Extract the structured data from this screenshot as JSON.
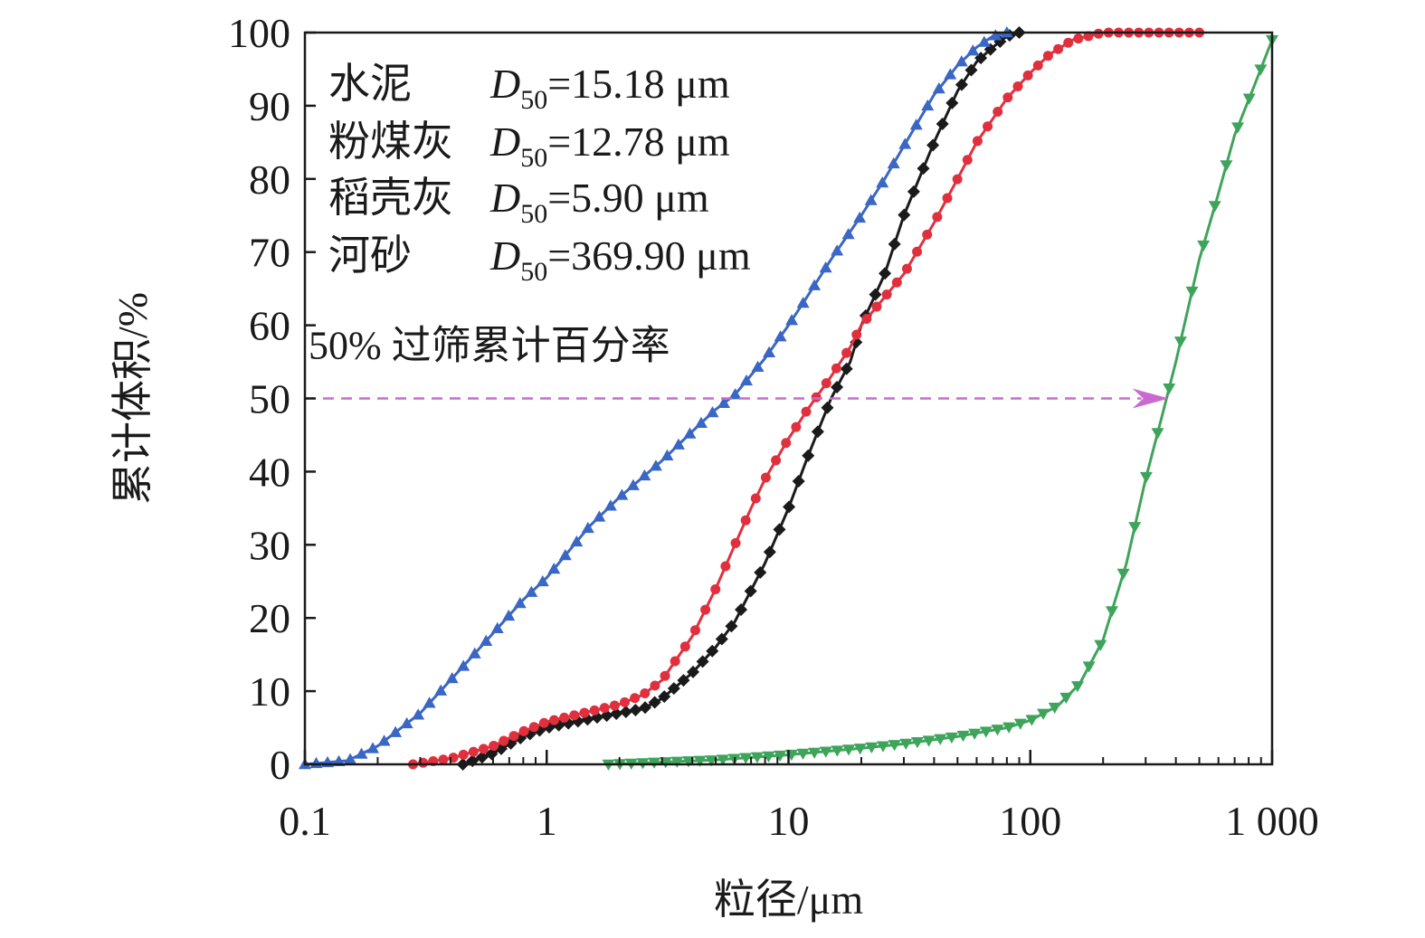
{
  "chart_data": {
    "type": "line",
    "xscale": "log",
    "xlim": [
      0.1,
      1000
    ],
    "ylim": [
      0,
      100
    ],
    "xticks": [
      {
        "value": 0.1,
        "label": "0.1"
      },
      {
        "value": 1,
        "label": "1"
      },
      {
        "value": 10,
        "label": "10"
      },
      {
        "value": 100,
        "label": "100"
      },
      {
        "value": 1000,
        "label": "1 000"
      }
    ],
    "yticks": [
      {
        "value": 0,
        "label": "0"
      },
      {
        "value": 10,
        "label": "10"
      },
      {
        "value": 20,
        "label": "20"
      },
      {
        "value": 30,
        "label": "30"
      },
      {
        "value": 40,
        "label": "40"
      },
      {
        "value": 50,
        "label": "50"
      },
      {
        "value": 60,
        "label": "60"
      },
      {
        "value": 70,
        "label": "70"
      },
      {
        "value": 80,
        "label": "80"
      },
      {
        "value": 90,
        "label": "90"
      },
      {
        "value": 100,
        "label": "100"
      }
    ],
    "xlabel": "粒径/μm",
    "ylabel": "累计体积/%",
    "legend_placement": "top-left",
    "series": [
      {
        "name": "水泥",
        "d50_value": "=15.18 μm",
        "color": "#1a1a1a",
        "marker": "diamond",
        "points": [
          [
            0.45,
            0
          ],
          [
            0.6,
            1.5
          ],
          [
            0.8,
            3.8
          ],
          [
            1.0,
            5.0
          ],
          [
            1.5,
            6.2
          ],
          [
            2.0,
            7.0
          ],
          [
            2.5,
            7.6
          ],
          [
            3.0,
            9.0
          ],
          [
            4.0,
            12.5
          ],
          [
            5.0,
            16.0
          ],
          [
            6.0,
            19.5
          ],
          [
            8.0,
            27.5
          ],
          [
            10.0,
            35.0
          ],
          [
            12.0,
            42.0
          ],
          [
            15.0,
            50.0
          ],
          [
            18.0,
            55.0
          ],
          [
            20.0,
            60.0
          ],
          [
            25.0,
            67.0
          ],
          [
            30.0,
            75.0
          ],
          [
            40.0,
            85.0
          ],
          [
            50.0,
            92.0
          ],
          [
            60.0,
            96.0
          ],
          [
            70.0,
            98.0
          ],
          [
            80.0,
            99.5
          ],
          [
            90.0,
            100.0
          ]
        ]
      },
      {
        "name": "粉煤灰",
        "d50_value": "=12.78 μm",
        "color": "#e0303e",
        "marker": "circle",
        "points": [
          [
            0.28,
            0
          ],
          [
            0.4,
            0.8
          ],
          [
            0.6,
            2.5
          ],
          [
            0.8,
            4.5
          ],
          [
            1.0,
            5.8
          ],
          [
            1.5,
            7.2
          ],
          [
            2.0,
            8.2
          ],
          [
            2.5,
            9.5
          ],
          [
            3.0,
            11.5
          ],
          [
            4.0,
            17.5
          ],
          [
            5.0,
            24.0
          ],
          [
            6.0,
            30.0
          ],
          [
            7.0,
            35.0
          ],
          [
            8.0,
            39.0
          ],
          [
            10.0,
            44.5
          ],
          [
            12.0,
            48.5
          ],
          [
            15.0,
            53.0
          ],
          [
            18.0,
            57.0
          ],
          [
            20.0,
            60.0
          ],
          [
            30.0,
            67.0
          ],
          [
            40.0,
            74.0
          ],
          [
            50.0,
            80.0
          ],
          [
            60.0,
            85.0
          ],
          [
            80.0,
            91.0
          ],
          [
            100.0,
            94.5
          ],
          [
            120.0,
            97.0
          ],
          [
            150.0,
            99.0
          ],
          [
            200.0,
            100.0
          ],
          [
            300.0,
            100.0
          ],
          [
            500.0,
            100.0
          ]
        ]
      },
      {
        "name": "稻壳灰",
        "d50_value": "=5.90 μm",
        "color": "#3a66c4",
        "marker": "triangle-up",
        "points": [
          [
            0.1,
            0
          ],
          [
            0.15,
            0.5
          ],
          [
            0.2,
            2.5
          ],
          [
            0.3,
            7.0
          ],
          [
            0.5,
            15.0
          ],
          [
            0.8,
            22.5
          ],
          [
            1.0,
            25.5
          ],
          [
            1.5,
            32.5
          ],
          [
            2.0,
            36.5
          ],
          [
            3.0,
            41.5
          ],
          [
            4.0,
            45.5
          ],
          [
            5.0,
            48.5
          ],
          [
            6.0,
            50.5
          ],
          [
            8.0,
            55.5
          ],
          [
            10.0,
            60.0
          ],
          [
            12.0,
            64.0
          ],
          [
            15.0,
            69.0
          ],
          [
            20.0,
            75.0
          ],
          [
            25.0,
            80.0
          ],
          [
            30.0,
            84.5
          ],
          [
            40.0,
            91.5
          ],
          [
            50.0,
            95.5
          ],
          [
            60.0,
            98.0
          ],
          [
            70.0,
            99.5
          ],
          [
            80.0,
            100.0
          ]
        ]
      },
      {
        "name": "河砂",
        "d50_value": "=369.90 μm",
        "color": "#3fa45b",
        "marker": "triangle-down",
        "points": [
          [
            1.8,
            0
          ],
          [
            3.0,
            0.3
          ],
          [
            5.0,
            0.6
          ],
          [
            10.0,
            1.3
          ],
          [
            20.0,
            2.2
          ],
          [
            30.0,
            2.8
          ],
          [
            50.0,
            3.8
          ],
          [
            80.0,
            5.0
          ],
          [
            100.0,
            6.0
          ],
          [
            130.0,
            8.0
          ],
          [
            160.0,
            11.0
          ],
          [
            200.0,
            17.0
          ],
          [
            250.0,
            27.5
          ],
          [
            300.0,
            39.0
          ],
          [
            350.0,
            47.5
          ],
          [
            400.0,
            55.0
          ],
          [
            500.0,
            69.0
          ],
          [
            600.0,
            78.0
          ],
          [
            700.0,
            86.0
          ],
          [
            850.0,
            93.0
          ],
          [
            1000.0,
            99.0
          ]
        ]
      }
    ],
    "legend_subscript_symbol": "D",
    "legend_subscript": "50",
    "annotation": {
      "text": "50% 过筛累计百分率",
      "y_value": 50,
      "x_start": 0.1,
      "x_end": 400,
      "color": "#c86ad0"
    }
  }
}
